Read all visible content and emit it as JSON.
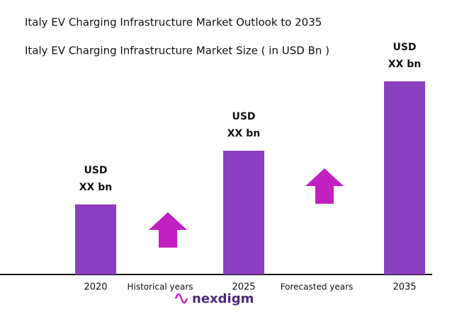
{
  "chart_data": {
    "type": "bar",
    "title": "Italy EV Charging Infrastructure Market Outlook to 2035",
    "subtitle": "Italy EV Charging Infrastructure Market Size ( in USD Bn )",
    "categories": [
      "2020",
      "2025",
      "2035"
    ],
    "values": [
      99,
      175,
      273
    ],
    "value_labels": [
      "USD\nXX bn",
      "USD\nXX bn",
      "USD\nXX bn"
    ],
    "color": "#8a3fbf",
    "ylim": [
      0,
      280
    ],
    "annotations": [
      "Historical years",
      "Forecasted years"
    ],
    "arrow_color": "#c21fc0",
    "logo": "nexdigm"
  }
}
